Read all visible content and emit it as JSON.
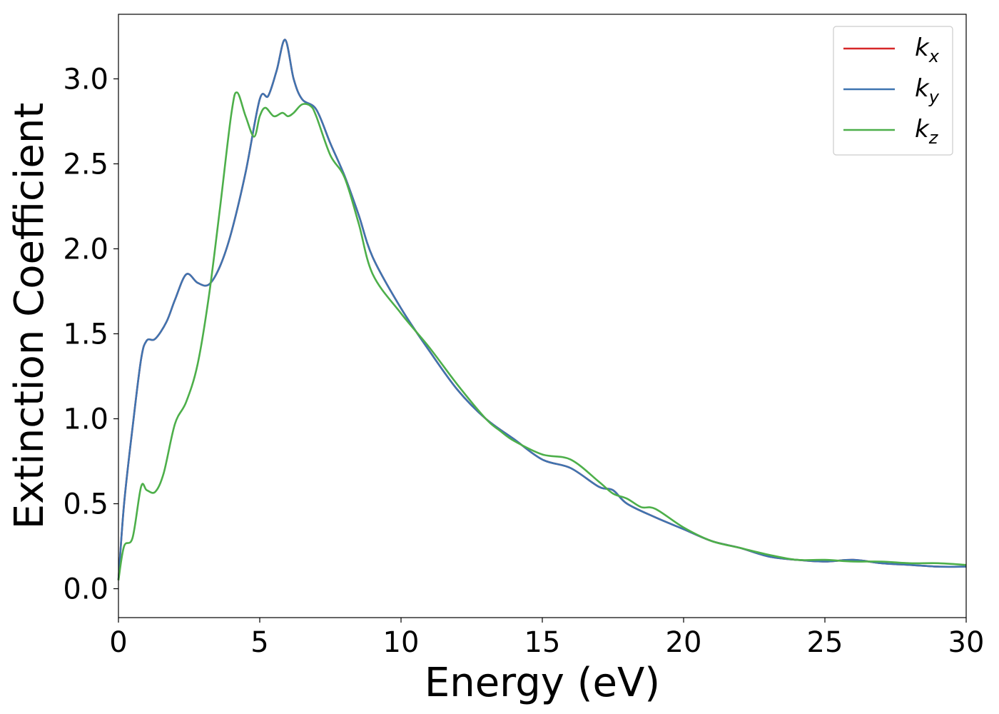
{
  "chart_data": {
    "type": "line",
    "title": "",
    "xlabel": "Energy (eV)",
    "ylabel": "Extinction Coefficient",
    "xlim": [
      0,
      30
    ],
    "ylim": [
      -0.17,
      3.38
    ],
    "xticks": [
      0,
      5,
      10,
      15,
      20,
      25,
      30
    ],
    "xtick_labels": [
      "0",
      "5",
      "10",
      "15",
      "20",
      "25",
      "30"
    ],
    "yticks": [
      0.0,
      0.5,
      1.0,
      1.5,
      2.0,
      2.5,
      3.0
    ],
    "ytick_labels": [
      "0.0",
      "0.5",
      "1.0",
      "1.5",
      "2.0",
      "2.5",
      "3.0"
    ],
    "grid": false,
    "legend_position": "top-right",
    "series": [
      {
        "name": "k",
        "subscript": "x",
        "color": "#d62728",
        "x": [
          0,
          0.2,
          0.5,
          0.8,
          1.0,
          1.3,
          1.7,
          2.0,
          2.4,
          2.8,
          3.2,
          3.6,
          4.0,
          4.5,
          5.0,
          5.3,
          5.6,
          5.9,
          6.2,
          6.5,
          7.0,
          7.5,
          8.0,
          8.5,
          9.0,
          10.0,
          11.0,
          12.0,
          13.0,
          14.0,
          15.0,
          16.0,
          17.0,
          17.5,
          18.0,
          19.0,
          20.0,
          21.0,
          22.0,
          23.0,
          24.0,
          25.0,
          26.0,
          27.0,
          28.0,
          29.0,
          30.0
        ],
        "y": [
          0.05,
          0.5,
          0.95,
          1.35,
          1.46,
          1.47,
          1.57,
          1.7,
          1.85,
          1.8,
          1.79,
          1.9,
          2.1,
          2.45,
          2.88,
          2.9,
          3.05,
          3.23,
          3.0,
          2.88,
          2.82,
          2.62,
          2.43,
          2.2,
          1.95,
          1.65,
          1.4,
          1.17,
          1.0,
          0.88,
          0.76,
          0.71,
          0.6,
          0.58,
          0.5,
          0.42,
          0.35,
          0.28,
          0.24,
          0.19,
          0.17,
          0.16,
          0.17,
          0.15,
          0.14,
          0.13,
          0.13
        ]
      },
      {
        "name": "k",
        "subscript": "y",
        "color": "#3f74b0",
        "x": [
          0,
          0.2,
          0.5,
          0.8,
          1.0,
          1.3,
          1.7,
          2.0,
          2.4,
          2.8,
          3.2,
          3.6,
          4.0,
          4.5,
          5.0,
          5.3,
          5.6,
          5.9,
          6.2,
          6.5,
          7.0,
          7.5,
          8.0,
          8.5,
          9.0,
          10.0,
          11.0,
          12.0,
          13.0,
          14.0,
          15.0,
          16.0,
          17.0,
          17.5,
          18.0,
          19.0,
          20.0,
          21.0,
          22.0,
          23.0,
          24.0,
          25.0,
          26.0,
          27.0,
          28.0,
          29.0,
          30.0
        ],
        "y": [
          0.05,
          0.5,
          0.95,
          1.35,
          1.46,
          1.47,
          1.57,
          1.7,
          1.85,
          1.8,
          1.79,
          1.9,
          2.1,
          2.45,
          2.88,
          2.9,
          3.05,
          3.23,
          3.0,
          2.88,
          2.82,
          2.62,
          2.43,
          2.2,
          1.95,
          1.65,
          1.4,
          1.17,
          1.0,
          0.88,
          0.76,
          0.71,
          0.6,
          0.58,
          0.5,
          0.42,
          0.35,
          0.28,
          0.24,
          0.19,
          0.17,
          0.16,
          0.17,
          0.15,
          0.14,
          0.13,
          0.13
        ]
      },
      {
        "name": "k",
        "subscript": "z",
        "color": "#4daf4a",
        "x": [
          0,
          0.2,
          0.5,
          0.8,
          1.0,
          1.3,
          1.6,
          2.0,
          2.4,
          2.8,
          3.2,
          3.6,
          4.0,
          4.2,
          4.5,
          4.8,
          5.0,
          5.2,
          5.5,
          5.8,
          6.0,
          6.2,
          6.5,
          6.8,
          7.0,
          7.5,
          8.0,
          8.5,
          9.0,
          10.0,
          11.0,
          12.0,
          13.0,
          13.5,
          14.0,
          15.0,
          16.0,
          17.0,
          17.5,
          18.0,
          18.5,
          19.0,
          20.0,
          21.0,
          22.0,
          23.0,
          24.0,
          25.0,
          26.0,
          27.0,
          28.0,
          29.0,
          30.0
        ],
        "y": [
          0.05,
          0.25,
          0.3,
          0.6,
          0.58,
          0.57,
          0.68,
          0.97,
          1.1,
          1.32,
          1.72,
          2.25,
          2.8,
          2.92,
          2.78,
          2.66,
          2.78,
          2.83,
          2.78,
          2.8,
          2.78,
          2.8,
          2.85,
          2.84,
          2.78,
          2.55,
          2.42,
          2.15,
          1.85,
          1.62,
          1.42,
          1.2,
          1.0,
          0.93,
          0.87,
          0.79,
          0.76,
          0.63,
          0.56,
          0.53,
          0.48,
          0.47,
          0.36,
          0.28,
          0.24,
          0.2,
          0.17,
          0.17,
          0.16,
          0.16,
          0.15,
          0.15,
          0.14
        ]
      }
    ]
  }
}
